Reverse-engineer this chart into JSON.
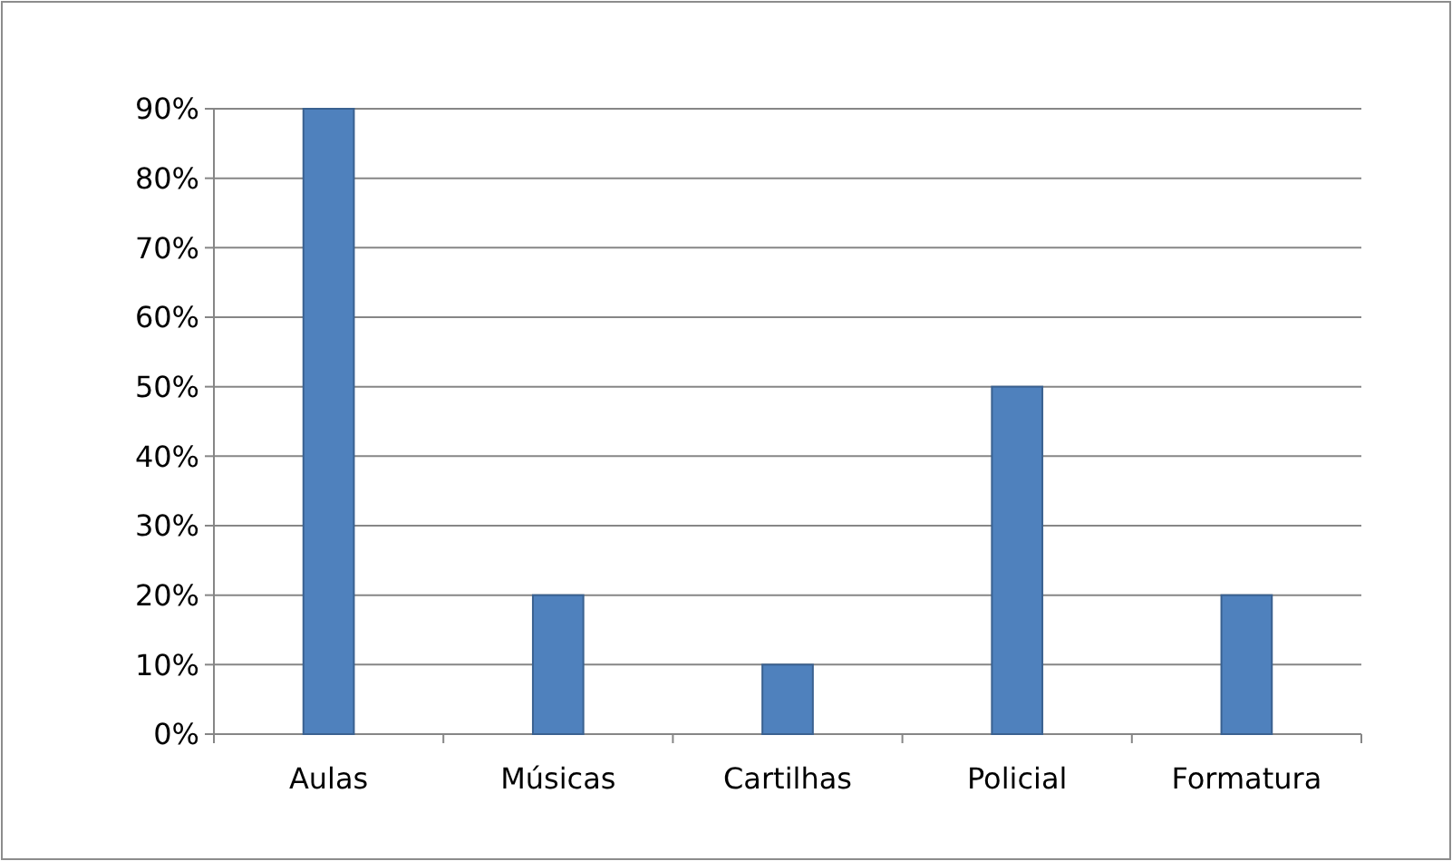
{
  "chart_data": {
    "type": "bar",
    "categories": [
      "Aulas",
      "Músicas",
      "Cartilhas",
      "Policial",
      "Formatura"
    ],
    "values": [
      90,
      20,
      10,
      50,
      20
    ],
    "color": "#4f81bd",
    "ylim": [
      0,
      90
    ],
    "yticks": [
      {
        "value": 0,
        "label": "0%"
      },
      {
        "value": 10,
        "label": "10%"
      },
      {
        "value": 20,
        "label": "20%"
      },
      {
        "value": 30,
        "label": "30%"
      },
      {
        "value": 40,
        "label": "40%"
      },
      {
        "value": 50,
        "label": "50%"
      },
      {
        "value": 60,
        "label": "60%"
      },
      {
        "value": 70,
        "label": "70%"
      },
      {
        "value": 80,
        "label": "80%"
      },
      {
        "value": 90,
        "label": "90%"
      }
    ],
    "grid": true
  }
}
